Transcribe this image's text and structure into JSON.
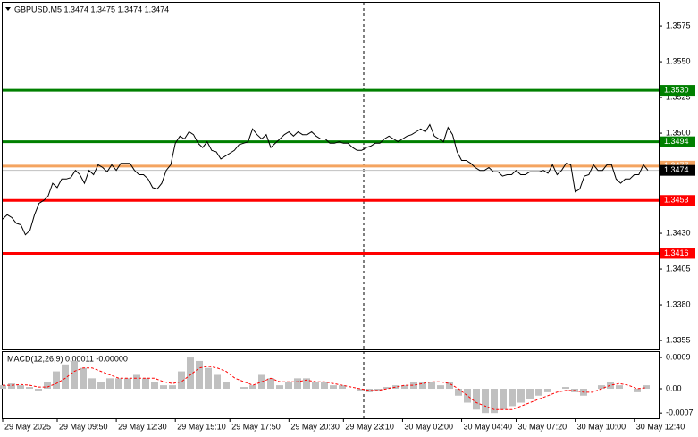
{
  "chart_data": [
    {
      "type": "line",
      "title": "GBPUSD,M5  1.3474 1.3475 1.3474 1.3474",
      "categories": [
        "29 May 2025",
        null,
        null,
        null,
        null,
        null,
        null,
        null,
        null,
        null,
        null,
        null,
        "29 May 09:50",
        null,
        null,
        null,
        null,
        null,
        null,
        null,
        null,
        null,
        null,
        null,
        null,
        "29 May 12:30",
        null,
        null,
        null,
        null,
        null,
        null,
        null,
        null,
        null,
        null,
        null,
        null,
        "29 May 15:10",
        null,
        null,
        null,
        null,
        null,
        null,
        null,
        null,
        null,
        null,
        null,
        "29 May 17:50",
        null,
        null,
        null,
        null,
        null,
        null,
        null,
        null,
        null,
        null,
        null,
        null,
        "29 May 20:30",
        null,
        null,
        null,
        null,
        null,
        null,
        null,
        null,
        null,
        null,
        null,
        "29 May 23:10",
        null,
        null,
        null,
        null,
        null,
        null,
        null,
        null,
        null,
        null,
        null,
        null,
        "30 May 02:00",
        null,
        null,
        null,
        null,
        null,
        null,
        null,
        null,
        null,
        null,
        null,
        null,
        "30 May 04:40",
        null,
        null,
        null,
        null,
        null,
        null,
        null,
        null,
        null,
        null,
        null,
        "30 May 07:20",
        null,
        null,
        null,
        null,
        null,
        null,
        null,
        null,
        null,
        null,
        null,
        null,
        "30 May 10:00",
        null,
        null,
        null,
        null,
        null,
        null,
        null,
        null,
        null,
        null,
        null,
        null,
        "30 May 12:40",
        null,
        null,
        null
      ],
      "series": [
        {
          "color": "#000000",
          "values": [
            1.344,
            1.3443,
            1.3441,
            1.3437,
            1.3436,
            1.3429,
            1.3432,
            1.3443,
            1.3451,
            1.3453,
            1.3456,
            1.3465,
            1.3462,
            1.3468,
            1.3468,
            1.3469,
            1.3474,
            1.3471,
            1.3465,
            1.3474,
            1.3471,
            1.3478,
            1.3476,
            1.3473,
            1.3478,
            1.3474,
            1.3479,
            1.3479,
            1.3479,
            1.3474,
            1.3471,
            1.3471,
            1.3468,
            1.3462,
            1.3461,
            1.3465,
            1.3474,
            1.3478,
            1.3493,
            1.3498,
            1.3496,
            1.3501,
            1.3499,
            1.3493,
            1.349,
            1.3494,
            1.3488,
            1.3487,
            1.3482,
            1.3484,
            1.3486,
            1.3488,
            1.3492,
            1.3493,
            1.3494,
            1.3503,
            1.3499,
            1.3496,
            1.3499,
            1.349,
            1.3493,
            1.3496,
            1.3499,
            1.3501,
            1.3498,
            1.3501,
            1.3499,
            1.3499,
            1.3501,
            1.3498,
            1.3496,
            1.3496,
            1.3493,
            1.3493,
            1.3494,
            1.3493,
            1.3493,
            1.349,
            1.3488,
            1.3488,
            1.349,
            1.3491,
            1.3493,
            1.3493,
            1.3496,
            1.3498,
            1.3496,
            1.3494,
            1.3496,
            1.3498,
            1.3499,
            1.3501,
            1.3503,
            1.3501,
            1.3506,
            1.3498,
            1.3496,
            1.3494,
            1.3504,
            1.3499,
            1.3487,
            1.3481,
            1.3481,
            1.3479,
            1.3476,
            1.3474,
            1.3474,
            1.3476,
            1.3473,
            1.3473,
            1.347,
            1.3471,
            1.3471,
            1.3474,
            1.3471,
            1.3471,
            1.3473,
            1.3473,
            1.3473,
            1.3474,
            1.3472,
            1.3478,
            1.3471,
            1.3474,
            1.3479,
            1.3478,
            1.3459,
            1.3461,
            1.347,
            1.3471,
            1.3478,
            1.3474,
            1.3474,
            1.3478,
            1.3478,
            1.3468,
            1.3465,
            1.3468,
            1.3468,
            1.3471,
            1.3471,
            1.3478,
            1.3474
          ]
        }
      ],
      "ylim": [
        1.33494,
        1.35913
      ],
      "yticks": [
        1.3575,
        {
          "value": 1.355,
          "label": "1.3550"
        },
        1.3525,
        {
          "value": 1.35,
          "label": "1.3500"
        },
        {
          "value": 1.343,
          "label": "1.3430"
        },
        1.3405,
        {
          "value": 1.338,
          "label": "1.3380"
        },
        1.3355
      ],
      "levels": [
        {
          "value": 1.353,
          "label": "1.3530",
          "color": "#008000"
        },
        {
          "value": 1.3494,
          "color": "#008000"
        },
        {
          "value": 1.3453,
          "color": "#ff0000"
        },
        {
          "value": 1.3416,
          "color": "#ff0000"
        },
        {
          "value": 1.3477,
          "color": "#f4a460"
        },
        {
          "value": 1.3474,
          "color": "#000000"
        }
      ]
    },
    {
      "type": "bar",
      "title": "MACD(12,26,9) 0.00011 -0.00000",
      "series": [
        {
          "type": "bar",
          "color": "#c0c0c0",
          "values": [
            0.0001,
            0.00015,
            0.0001,
            5e-05,
            -5e-05,
            0.0002,
            0.0005,
            0.0007,
            0.0008,
            0.0006,
            0.0003,
            0.0002,
            0.0003,
            0.0003,
            0.0003,
            0.0004,
            0.0003,
            0.0002,
            0.0001,
            0.0001,
            0.0005,
            0.0009,
            0.0008,
            0.0006,
            0.0004,
            0.0002,
            0,
            5e-05,
            0.0001,
            0.0004,
            0.0003,
            0.0001,
            0.0002,
            0.0003,
            0.0003,
            0.0002,
            0.0002,
            0.0001,
            0.0001,
            0,
            -5e-05,
            -0.0001,
            -5e-05,
            5e-05,
            0.0001,
            0.0001,
            0.0002,
            0.0002,
            0.0002,
            0.0001,
            0.0002,
            -0.0002,
            -0.0004,
            -0.0006,
            -0.0007,
            -0.0007,
            -0.0006,
            -0.0005,
            -0.0004,
            -0.0003,
            -0.0002,
            -0.0001,
            0,
            5e-05,
            -0.0001,
            -0.0002,
            0,
            0.0001,
            0.0002,
            0.0001,
            0,
            -0.0001,
            0.0001
          ]
        },
        {
          "type": "line",
          "color": "#ff0000",
          "values": [
            0.0001,
            0.0001,
            0.00012,
            0.0001,
            5e-05,
            5e-05,
            0.00015,
            0.0003,
            0.0005,
            0.0006,
            0.0006,
            0.0005,
            0.0004,
            0.0003,
            0.0003,
            0.0003,
            0.0003,
            0.0003,
            0.0002,
            0.00015,
            0.0002,
            0.0004,
            0.0006,
            0.00065,
            0.0006,
            0.0005,
            0.0003,
            0.0002,
            0.0001,
            0.0002,
            0.0003,
            0.0002,
            0.0002,
            0.0002,
            0.00025,
            0.0002,
            0.0002,
            0.00015,
            0.0001,
            5e-05,
            0,
            -5e-05,
            -5e-05,
            0,
            5e-05,
            0.0001,
            0.0001,
            0.00015,
            0.0002,
            0.0002,
            0.00015,
            0,
            -0.0002,
            -0.0004,
            -0.0005,
            -0.0006,
            -0.0006,
            -0.0006,
            -0.0005,
            -0.0004,
            -0.0003,
            -0.0002,
            -0.0001,
            -5e-05,
            -5e-05,
            -0.0001,
            -0.0001,
            0,
            0.0001,
            0.00015,
            0.0001,
            0,
            3e-05
          ]
        }
      ],
      "ylim": [
        -0.00085,
        0.00103
      ],
      "yticks": [
        0.0009,
        {
          "value": 0,
          "label": "0.00"
        },
        -0.0007
      ]
    }
  ]
}
